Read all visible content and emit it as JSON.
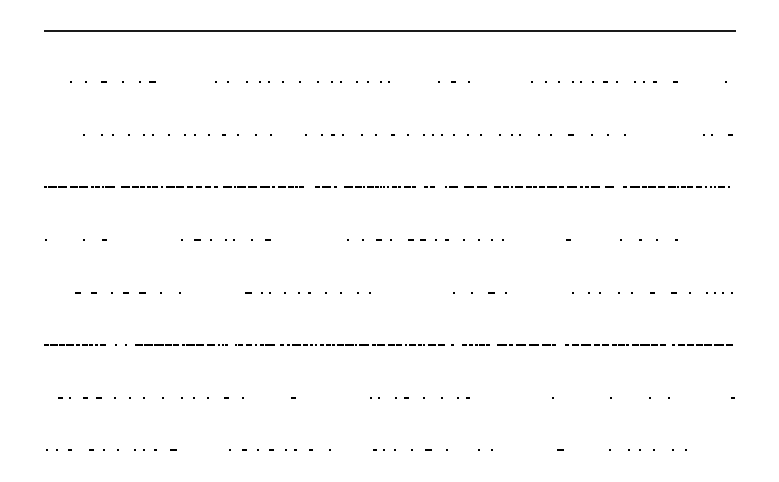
{
  "document": {
    "top_rule": true,
    "text_lines": [
      {
        "marks": "sparse-dots"
      },
      {
        "marks": "sparse-dots"
      },
      {
        "marks": "dense-dashes"
      },
      {
        "marks": "sparse-dots"
      },
      {
        "marks": "sparse-dots"
      },
      {
        "marks": "dense-dashes"
      },
      {
        "marks": "sparse-dots"
      },
      {
        "marks": "sparse-dots"
      }
    ]
  }
}
